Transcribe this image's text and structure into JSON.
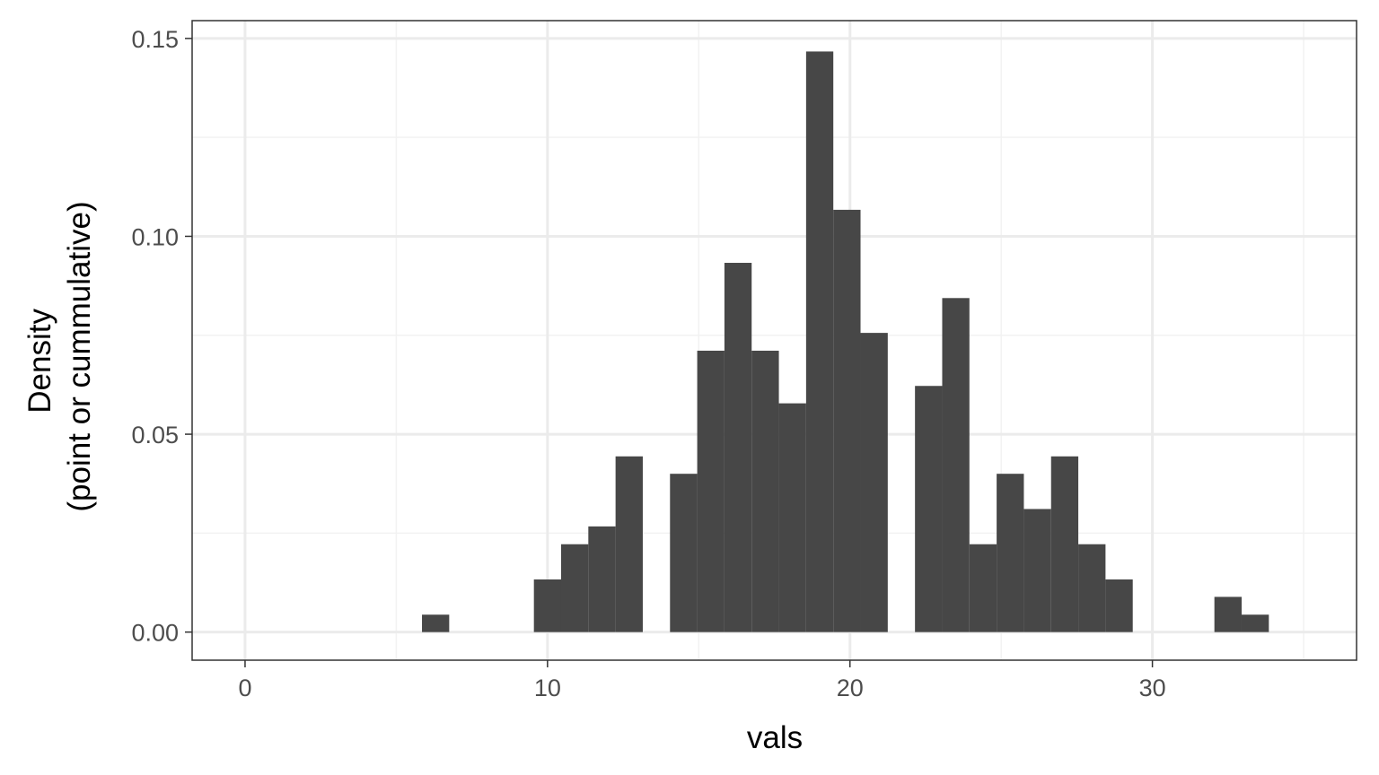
{
  "chart_data": {
    "type": "bar",
    "subtype": "histogram",
    "xlabel": "vals",
    "ylabel_lines": [
      "Density",
      "(point or cummulative)"
    ],
    "xlim": [
      -1.75,
      36.75
    ],
    "ylim": [
      -0.0071,
      0.1545
    ],
    "x_ticks": [
      0,
      10,
      20,
      30
    ],
    "x_tick_labels": [
      "0",
      "10",
      "20",
      "30"
    ],
    "y_ticks": [
      0,
      0.05,
      0.1,
      0.15
    ],
    "y_tick_labels": [
      "0.00",
      "0.05",
      "0.10",
      "0.15"
    ],
    "bin_width": 0.9,
    "bins": [
      {
        "x": 6.3,
        "y": 0.0044
      },
      {
        "x": 10.0,
        "y": 0.0133
      },
      {
        "x": 10.9,
        "y": 0.0222
      },
      {
        "x": 11.8,
        "y": 0.0267
      },
      {
        "x": 12.7,
        "y": 0.0444
      },
      {
        "x": 14.5,
        "y": 0.04
      },
      {
        "x": 15.4,
        "y": 0.0711
      },
      {
        "x": 16.3,
        "y": 0.0933
      },
      {
        "x": 17.2,
        "y": 0.0711
      },
      {
        "x": 18.1,
        "y": 0.0578
      },
      {
        "x": 19.0,
        "y": 0.1467
      },
      {
        "x": 19.9,
        "y": 0.1067
      },
      {
        "x": 20.8,
        "y": 0.0756
      },
      {
        "x": 22.6,
        "y": 0.0622
      },
      {
        "x": 23.5,
        "y": 0.0844
      },
      {
        "x": 24.4,
        "y": 0.0222
      },
      {
        "x": 25.3,
        "y": 0.04
      },
      {
        "x": 26.2,
        "y": 0.0311
      },
      {
        "x": 27.1,
        "y": 0.0444
      },
      {
        "x": 28.0,
        "y": 0.0222
      },
      {
        "x": 28.9,
        "y": 0.0133
      },
      {
        "x": 32.5,
        "y": 0.0089
      },
      {
        "x": 33.4,
        "y": 0.0044
      }
    ],
    "grid": true,
    "bar_color": "#474747",
    "grid_major_color": "#ebebeb",
    "grid_minor_color": "#f2f2f2",
    "panel_border_color": "#333333"
  }
}
